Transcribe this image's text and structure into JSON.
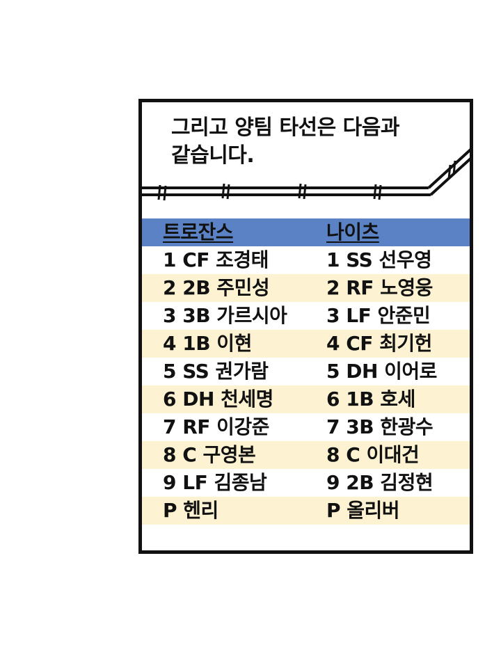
{
  "colors": {
    "header_bg": "#5b82c4",
    "shade_bg": "#fdf3d3",
    "line": "#111111"
  },
  "caption": {
    "line1": "그리고 양팀 타선은 다음과",
    "line2": "같습니다."
  },
  "lineup": {
    "teams": [
      "트로잔스",
      "나이츠"
    ],
    "rows": [
      {
        "left": "1  CF  조경태",
        "right": "1  SS  선우영"
      },
      {
        "left": "2  2B  주민성",
        "right": "2  RF  노영웅"
      },
      {
        "left": "3  3B  가르시아",
        "right": "3  LF   안준민"
      },
      {
        "left": "4  1B  이현",
        "right": "4  CF  최기헌"
      },
      {
        "left": "5  SS  권가람",
        "right": "5  DH 이어로"
      },
      {
        "left": "6  DH 천세명",
        "right": "6  1B  호세"
      },
      {
        "left": "7  RF  이강준",
        "right": "7  3B  한광수"
      },
      {
        "left": "8  C    구영본",
        "right": "8  C    이대건"
      },
      {
        "left": "9  LF  김종남",
        "right": "9  2B  김정현"
      },
      {
        "left": "P 헨리",
        "right": "P 올리버"
      }
    ]
  }
}
